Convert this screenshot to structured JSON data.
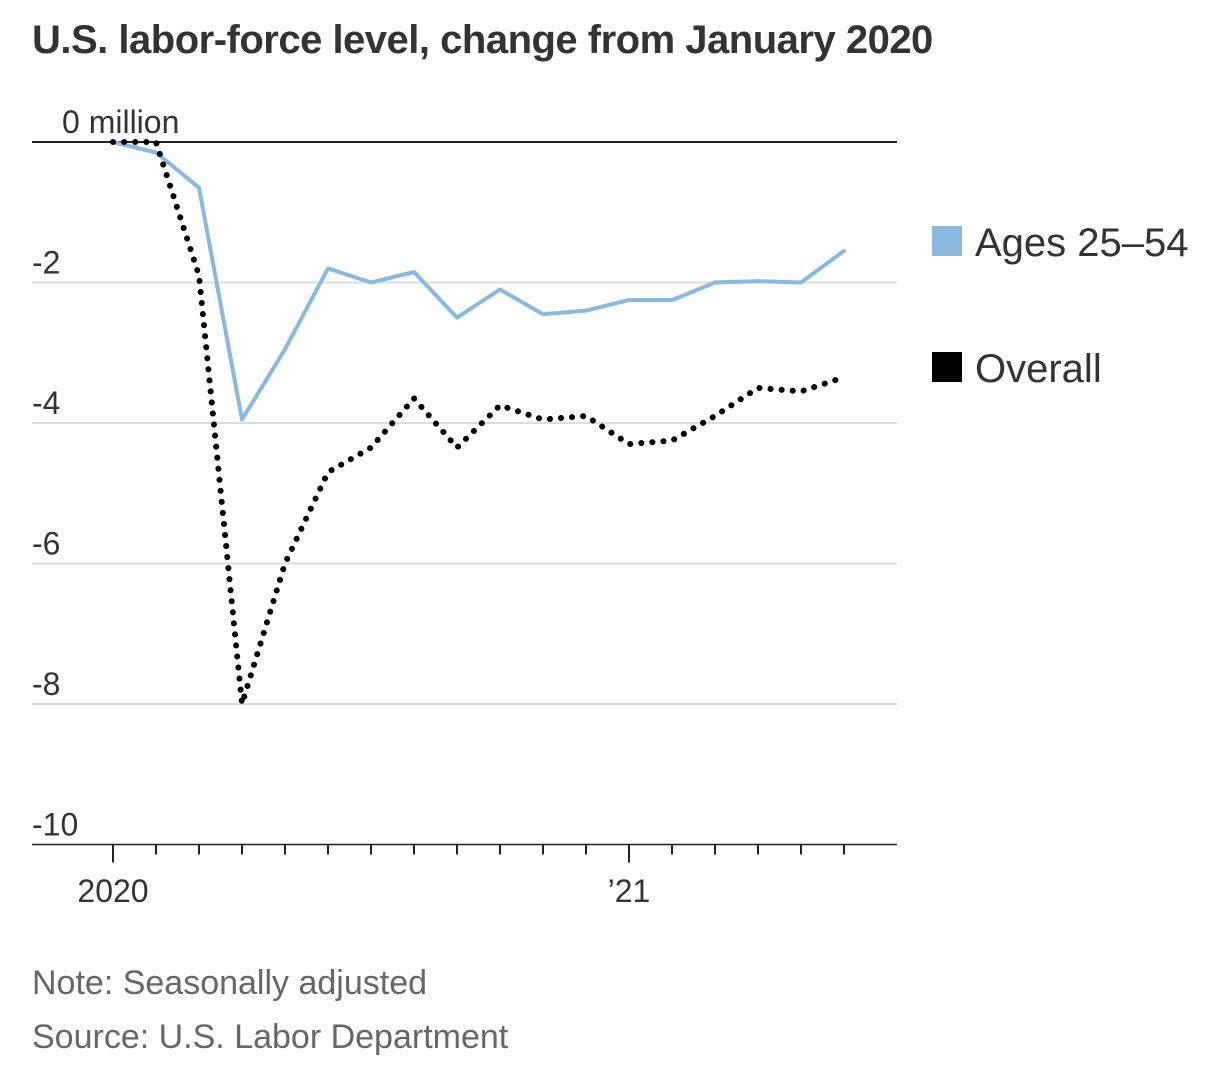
{
  "chart_data": {
    "type": "line",
    "title": "U.S. labor-force level, change from January 2020",
    "y_tick_labels": [
      "0 million",
      "-2",
      "-4",
      "-6",
      "-8",
      "-10"
    ],
    "y_ticks": [
      0,
      -2,
      -4,
      -6,
      -8,
      -10
    ],
    "ylim": [
      -10,
      0
    ],
    "x_tick_labels": [
      {
        "label": "2020",
        "x": "2020-01"
      },
      {
        "label": "’21",
        "x": "2021-01"
      }
    ],
    "x": [
      "2020-01",
      "2020-02",
      "2020-03",
      "2020-04",
      "2020-05",
      "2020-06",
      "2020-07",
      "2020-08",
      "2020-09",
      "2020-10",
      "2020-11",
      "2020-12",
      "2021-01",
      "2021-02",
      "2021-03",
      "2021-04",
      "2021-05",
      "2021-06"
    ],
    "series": [
      {
        "name": "Ages 25–54",
        "color": "#8ab8df",
        "style": "solid",
        "values": [
          0,
          -0.15,
          -0.65,
          -3.95,
          -2.95,
          -1.8,
          -2.0,
          -1.85,
          -2.5,
          -2.1,
          -2.45,
          -2.4,
          -2.25,
          -2.25,
          -2.0,
          -1.98,
          -2.0,
          -1.55
        ]
      },
      {
        "name": "Overall",
        "color": "#000000",
        "style": "dotted",
        "values": [
          0,
          0,
          -1.9,
          -8.0,
          -6.0,
          -4.7,
          -4.35,
          -3.65,
          -4.35,
          -3.75,
          -3.95,
          -3.9,
          -4.3,
          -4.25,
          -3.9,
          -3.5,
          -3.55,
          -3.35
        ]
      }
    ],
    "legend_position": "right",
    "grid": true
  },
  "footer": {
    "note": "Note: Seasonally adjusted",
    "source": "Source: U.S. Labor Department"
  }
}
